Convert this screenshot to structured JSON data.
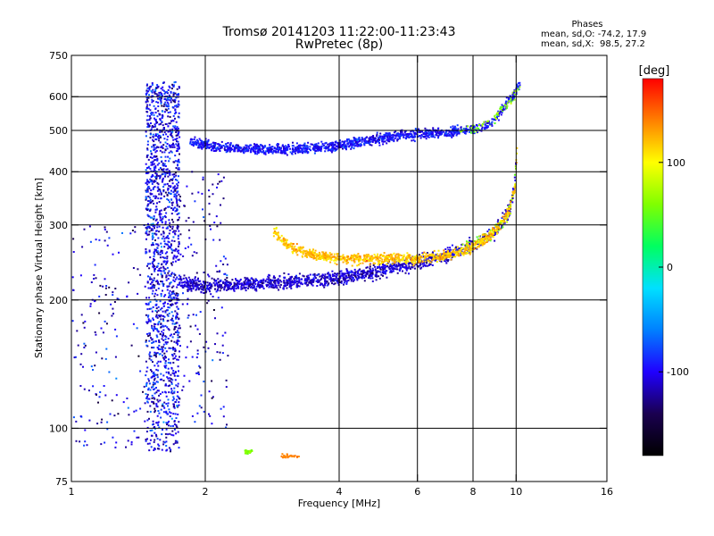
{
  "header": {
    "title_line1": "Tromsø 20141203 11:22:00-11:23:43",
    "title_line2": "RwPretec (8p)",
    "phases_title": "Phases",
    "phases_o": "mean, sd,O: -74.2, 17.9",
    "phases_x": "mean, sd,X:  98.5, 27.2"
  },
  "chart_data": {
    "type": "scatter",
    "title": "Tromsø 20141203 11:22:00-11:23:43",
    "subtitle": "RwPretec (8p)",
    "xlabel": "Frequency [MHz]",
    "ylabel": "Stationary phase Virtual Height [km]",
    "x_scale": "log",
    "y_scale": "log",
    "xlim": [
      1,
      16
    ],
    "ylim": [
      75,
      750
    ],
    "x_ticks": [
      1,
      2,
      4,
      6,
      8,
      10,
      16
    ],
    "y_ticks": [
      75,
      100,
      200,
      300,
      400,
      500,
      600,
      750
    ],
    "x_gridlines": [
      2,
      4,
      6,
      8,
      10
    ],
    "y_gridlines": [
      100,
      200,
      300,
      400,
      500,
      600
    ],
    "grid": true,
    "colorbar": {
      "label": "[deg]",
      "range": [
        -180,
        180
      ],
      "ticks": [
        100,
        0,
        -100
      ],
      "stops": [
        "#000000",
        "#1a0050",
        "#2000ff",
        "#0080ff",
        "#00e0ff",
        "#00ff60",
        "#80ff00",
        "#ffff00",
        "#ff8000",
        "#ff0000"
      ]
    },
    "traces": [
      {
        "x_range": [
          1.47,
          1.75
        ],
        "y_range": [
          87,
          650
        ],
        "phase": -100,
        "kind": "spread_F_column"
      },
      {
        "x_range": [
          1.0,
          1.47
        ],
        "y_range": [
          90,
          300
        ],
        "phase": -110,
        "kind": "sparse_echoes"
      },
      {
        "x_range": [
          1.75,
          2.25
        ],
        "y_range": [
          100,
          400
        ],
        "phase": -110,
        "kind": "sparse_echoes"
      },
      {
        "x": [
          1.85,
          2.2,
          3.0,
          4.0,
          5.0,
          6.0,
          7.0,
          8.0,
          8.8,
          9.3,
          9.8,
          10.2
        ],
        "y": [
          470,
          455,
          450,
          460,
          480,
          490,
          495,
          505,
          520,
          560,
          600,
          640
        ],
        "phase": -95,
        "kind": "F_upper_trace"
      },
      {
        "x": [
          1.75,
          2.0,
          3.0,
          4.0,
          5.0,
          6.0,
          7.0,
          8.0,
          9.0,
          9.6,
          9.9,
          10.0
        ],
        "y": [
          220,
          215,
          220,
          225,
          235,
          245,
          255,
          270,
          290,
          320,
          360,
          420
        ],
        "phase": -110,
        "kind": "O_trace"
      },
      {
        "x": [
          2.85,
          3.1,
          3.5,
          4.0,
          5.0,
          6.0,
          7.0,
          8.0,
          9.0,
          9.6,
          9.95,
          10.05
        ],
        "y": [
          290,
          265,
          255,
          250,
          250,
          250,
          255,
          265,
          290,
          320,
          370,
          460
        ],
        "phase": 120,
        "kind": "X_trace"
      },
      {
        "x": [
          2.45,
          2.55
        ],
        "y": [
          88,
          88
        ],
        "phase": 60,
        "kind": "E_echo"
      },
      {
        "x": [
          2.95,
          3.25
        ],
        "y": [
          86,
          86
        ],
        "phase": 140,
        "kind": "E_echo"
      }
    ]
  }
}
